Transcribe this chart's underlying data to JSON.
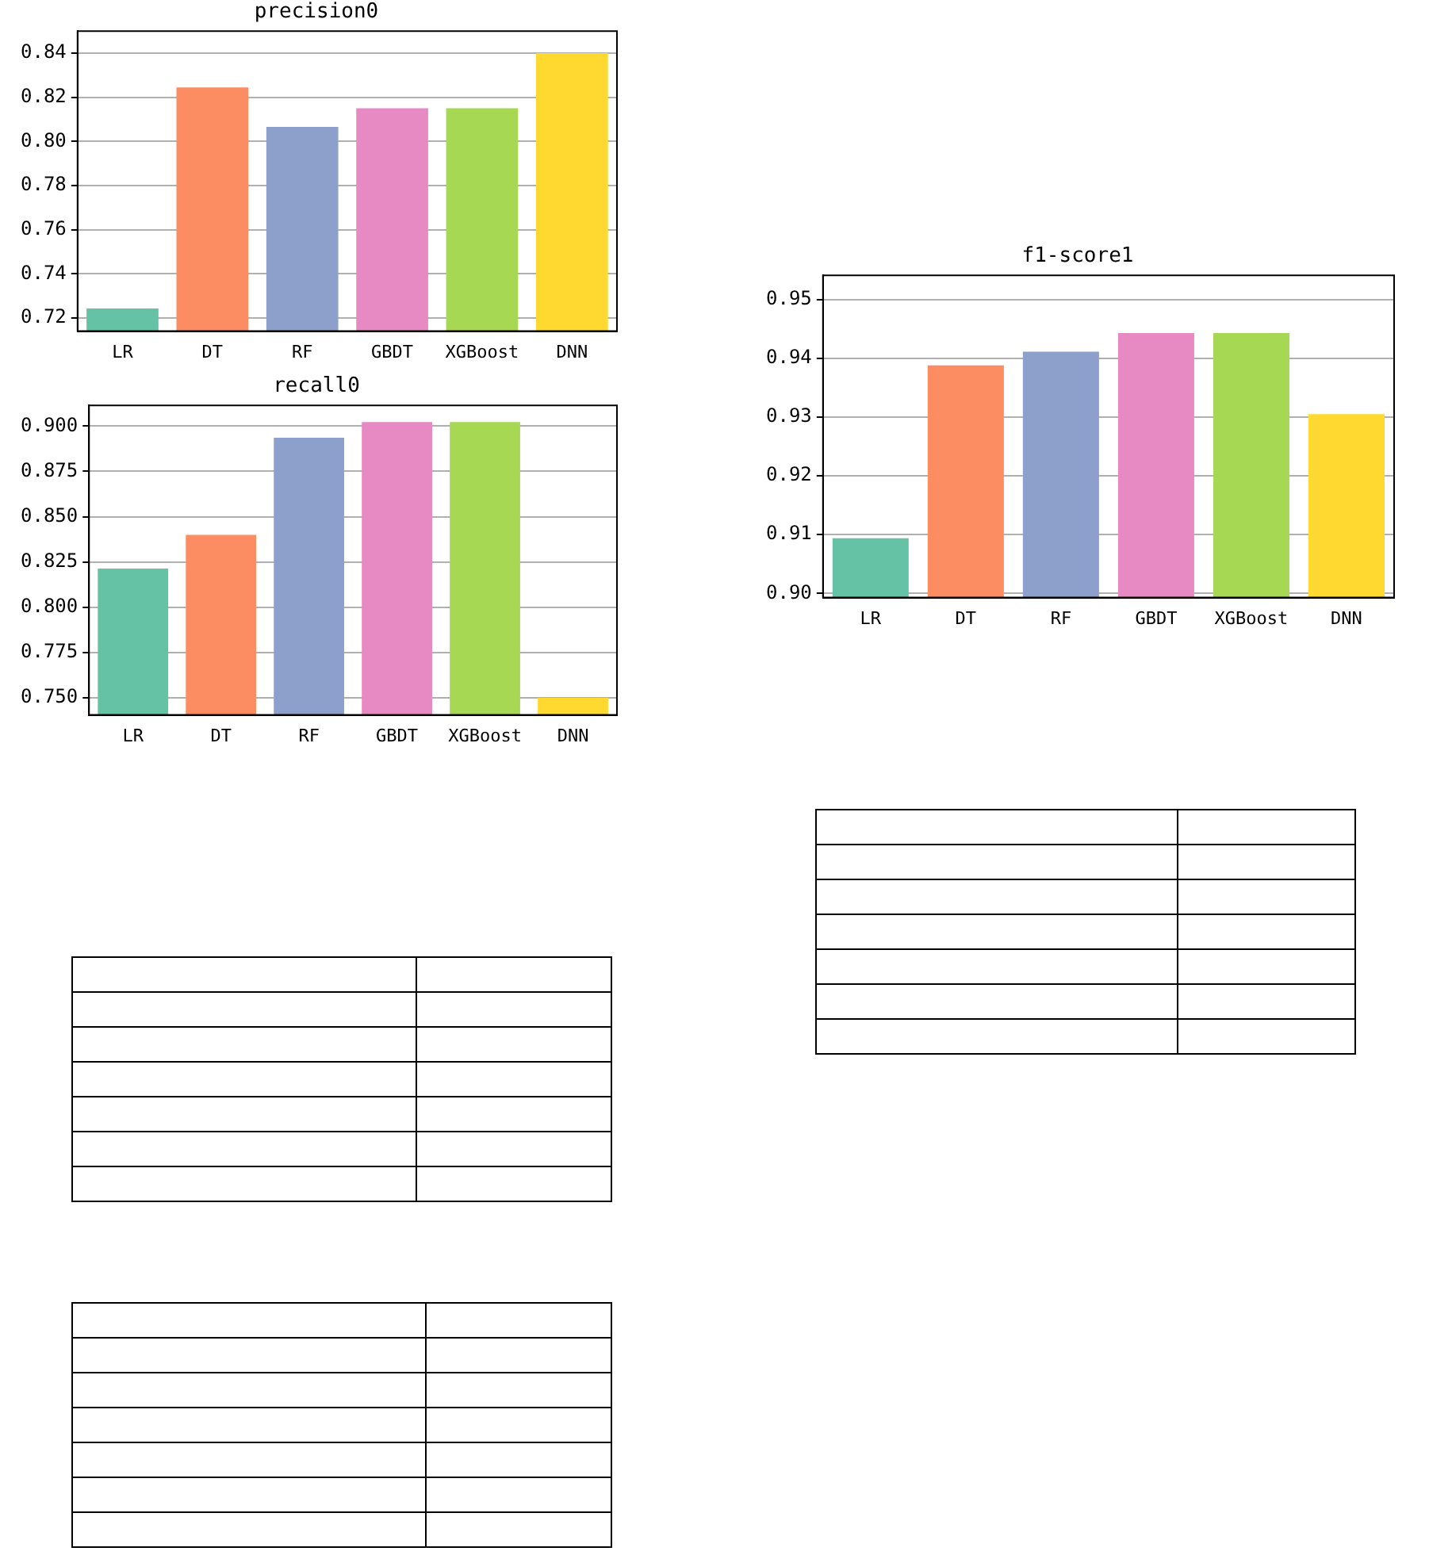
{
  "chart_data": [
    {
      "type": "bar",
      "title": "precision0",
      "categories": [
        "LR",
        "DT",
        "RF",
        "GBDT",
        "XGBoost",
        "DNN"
      ],
      "values": [
        0.7243,
        0.8245,
        0.8066,
        0.815,
        0.815,
        0.84
      ],
      "colors": [
        "#66c2a5",
        "#fc8d62",
        "#8da0cb",
        "#e78ac3",
        "#a6d854",
        "#ffd92f"
      ],
      "ylim": [
        0.714,
        0.85
      ],
      "yticks": [
        0.72,
        0.74,
        0.76,
        0.78,
        {
          "value": 0.8,
          "label": "0.80"
        },
        0.82,
        0.84
      ],
      "grid": "y"
    },
    {
      "type": "bar",
      "title": "recall0",
      "categories": [
        "LR",
        "DT",
        "RF",
        "GBDT",
        "XGBoost",
        "DNN"
      ],
      "values": [
        0.8214,
        0.84,
        0.8936,
        0.9022,
        0.9022,
        0.75
      ],
      "colors": [
        "#66c2a5",
        "#fc8d62",
        "#8da0cb",
        "#e78ac3",
        "#a6d854",
        "#ffd92f"
      ],
      "ylim": [
        0.7406,
        0.9114
      ],
      "yticks": [
        {
          "value": 0.75,
          "label": "0.750"
        },
        0.775,
        {
          "value": 0.8,
          "label": "0.800"
        },
        0.825,
        {
          "value": 0.85,
          "label": "0.850"
        },
        0.875,
        {
          "value": 0.9,
          "label": "0.900"
        }
      ],
      "grid": "y"
    },
    {
      "type": "bar",
      "title": "f1-score1",
      "categories": [
        "LR",
        "DT",
        "RF",
        "GBDT",
        "XGBoost",
        "DNN"
      ],
      "values": [
        0.9094,
        0.9388,
        0.9411,
        0.9443,
        0.9443,
        0.9305
      ],
      "colors": [
        "#66c2a5",
        "#fc8d62",
        "#8da0cb",
        "#e78ac3",
        "#a6d854",
        "#ffd92f"
      ],
      "ylim": [
        0.8993,
        0.9541
      ],
      "yticks": [
        {
          "value": 0.9,
          "label": "0.90"
        },
        0.91,
        0.92,
        0.93,
        0.94,
        0.95
      ],
      "grid": "y"
    }
  ]
}
